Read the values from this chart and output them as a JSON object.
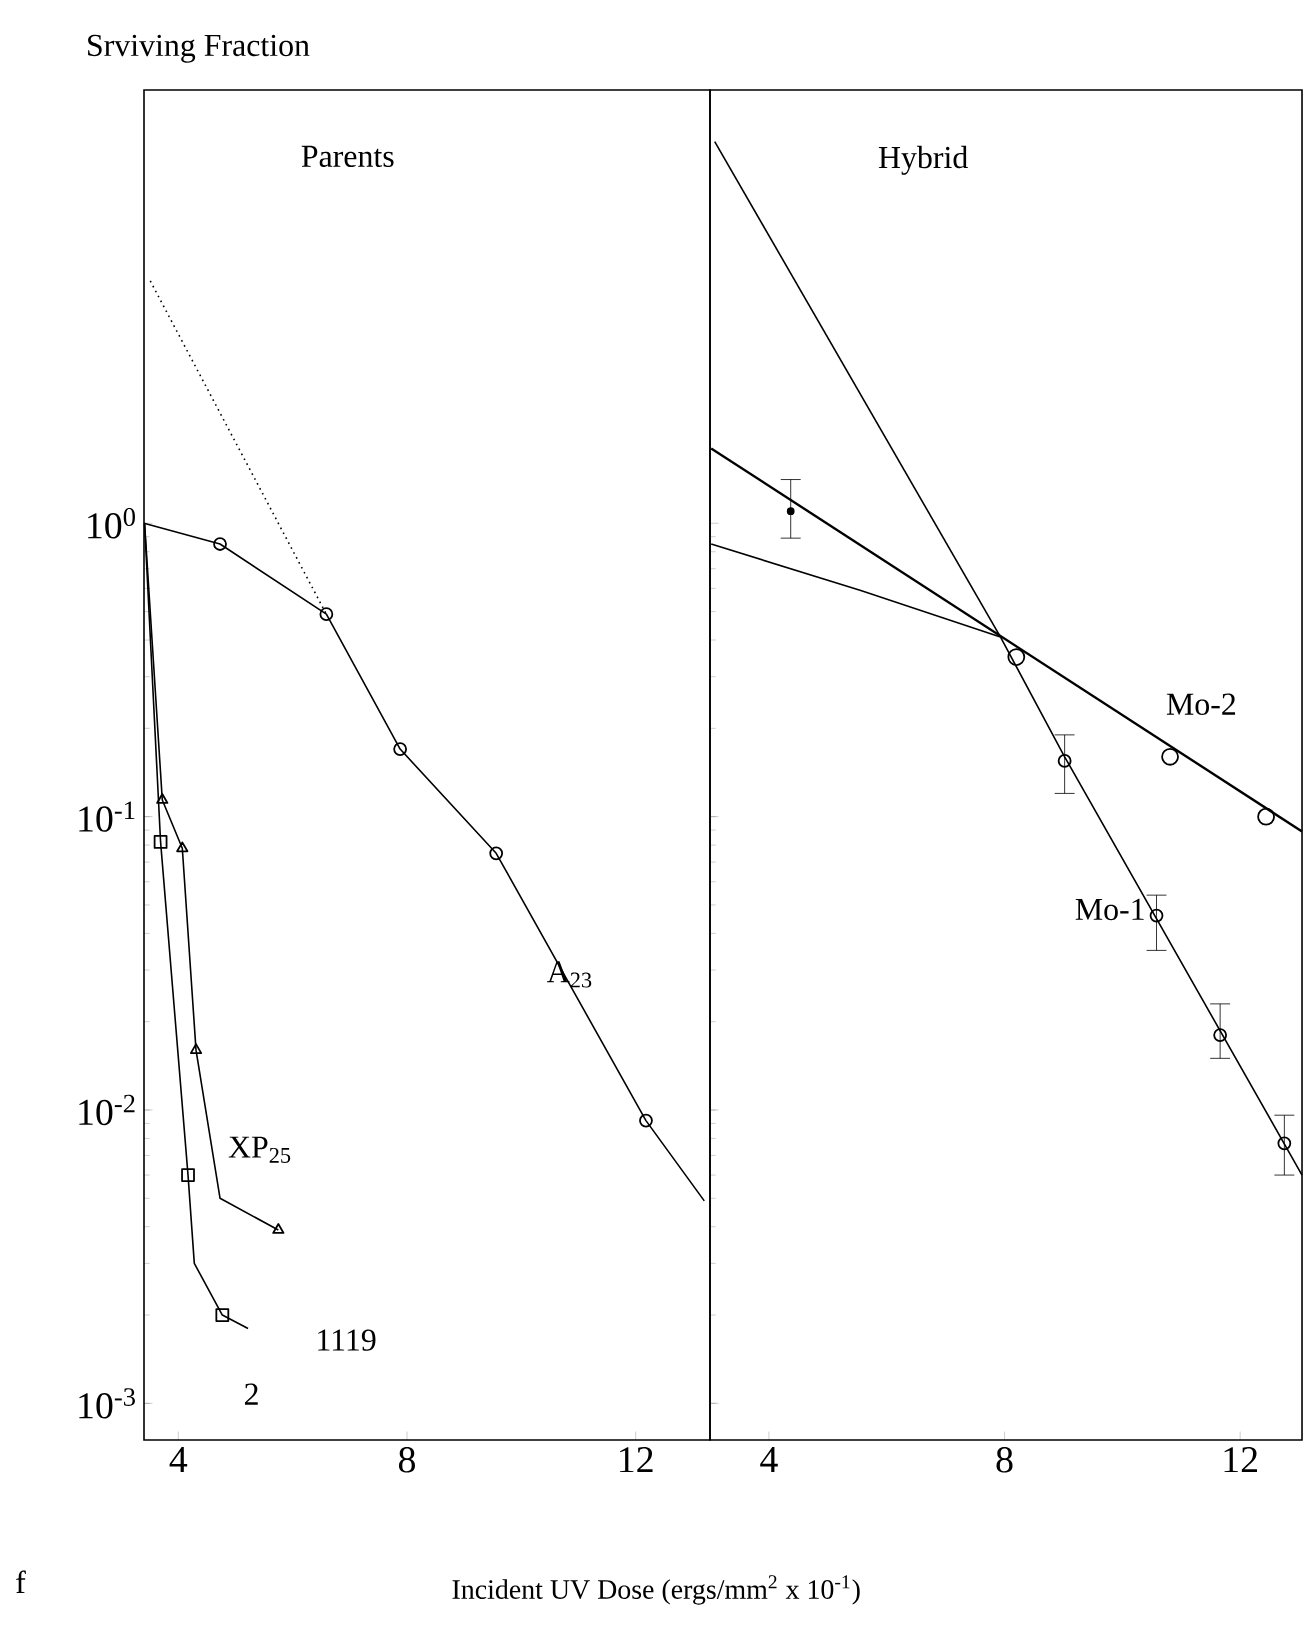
{
  "chart_data": [
    {
      "type": "line",
      "title": "Parents",
      "ylabel": "Srviving Fraction",
      "xlabel": "Incident UV Dose (ergs/mm$^{2}$ x 10$^{-1}$)",
      "log": "y",
      "xlim": [
        3.4,
        13.3
      ],
      "xticks": [
        4,
        8,
        12
      ],
      "ylim": [
        0.00075,
        30
      ],
      "yticks": [
        {
          "value": 0.001,
          "label": "10$^{-3}$"
        },
        {
          "value": 0.01,
          "label": "10$^{-2}$"
        },
        {
          "value": 0.1,
          "label": "10$^{-1}$"
        },
        {
          "value": 1,
          "label": "10$^{0}$"
        }
      ],
      "series": [
        {
          "color": "#000000",
          "marker": "none",
          "x": [
            3.4,
            4.73,
            6.59,
            7.88,
            9.56,
            12.18,
            13.2
          ],
          "values": [
            1.0,
            0.85,
            0.49,
            0.17,
            0.075,
            0.0092,
            0.0049
          ]
        },
        {
          "type": "scatter",
          "color": "#000000",
          "marker": "circle",
          "x": [
            4.73,
            6.59,
            7.88,
            9.56,
            12.18
          ],
          "values": [
            0.85,
            0.49,
            0.17,
            0.075,
            0.0092
          ]
        },
        {
          "color": "#000000",
          "marker": "none",
          "line_style": "dotted",
          "x": [
            3.51,
            6.59
          ],
          "values": [
            6.7,
            0.49
          ]
        },
        {
          "color": "#000000",
          "marker": "none",
          "x": [
            3.41,
            3.72,
            4.07,
            4.31,
            4.73,
            5.75
          ],
          "values": [
            1.0,
            0.114,
            0.078,
            0.016,
            0.005,
            0.0039
          ]
        },
        {
          "type": "scatter",
          "color": "#000000",
          "marker": "triangle",
          "x": [
            3.72,
            4.07,
            4.31,
            5.75
          ],
          "values": [
            0.114,
            0.078,
            0.016,
            0.0039
          ]
        },
        {
          "color": "#000000",
          "marker": "none",
          "x": [
            3.41,
            3.69,
            4.17,
            4.28,
            4.77,
            5.22
          ],
          "values": [
            1.0,
            0.082,
            0.006,
            0.003,
            0.002,
            0.0018
          ]
        },
        {
          "type": "scatter",
          "color": "#000000",
          "marker": "square",
          "x": [
            3.69,
            4.17,
            4.77
          ],
          "values": [
            0.082,
            0.006,
            0.002
          ]
        }
      ],
      "annotations": [
        {
          "text": "A$_{23}$",
          "x": 10.85,
          "y": 0.029
        },
        "XP$_{25}$",
        "1119",
        "2",
        "f"
      ]
    },
    {
      "type": "line",
      "title": "Hybrid",
      "log": "y",
      "xlim": [
        3.0,
        13.05
      ],
      "xticks": [
        4,
        8,
        12
      ],
      "ylim": [
        0.00075,
        30
      ],
      "tick_labels": "x",
      "yticks": [
        {
          "value": 0.001,
          "label": null
        },
        {
          "value": 0.01,
          "label": null
        },
        {
          "value": 0.1,
          "label": null
        },
        {
          "value": 1,
          "label": null
        }
      ],
      "series": [
        {
          "color": "#000000",
          "marker": "none",
          "x": [
            3.02,
            13.05
          ],
          "values": [
            1.8,
            0.089
          ]
        },
        {
          "type": "scatter",
          "color": "#000000",
          "marker": "circle",
          "x": [
            8.2,
            10.81,
            12.44
          ],
          "values": [
            0.35,
            0.16,
            0.1
          ]
        },
        {
          "type": "scatter",
          "color": "#000000",
          "x": [
            4.37
          ],
          "values": [
            1.1
          ],
          "errors": [
            [
              0.89,
              1.41
            ]
          ]
        },
        {
          "color": "#000000",
          "marker": "none",
          "x": [
            3.02,
            5.56,
            7.93,
            9.02,
            13.05
          ],
          "values": [
            0.85,
            0.59,
            0.41,
            0.16,
            0.006
          ]
        },
        {
          "type": "scatter",
          "color": "#000000",
          "marker": "circle",
          "x": [
            9.02,
            10.58,
            11.66,
            12.75
          ],
          "values": [
            0.155,
            0.046,
            0.018,
            0.0077
          ],
          "errors": [
            [
              0.12,
              0.19
            ],
            [
              0.035,
              0.054
            ],
            [
              0.015,
              0.023
            ],
            [
              0.006,
              0.0096
            ]
          ]
        },
        {
          "color": "#000000",
          "marker": "none",
          "x": [
            3.08,
            7.93
          ],
          "values": [
            20,
            0.41
          ]
        }
      ],
      "annotations": [
        "Mo-2",
        "Mo-1"
      ]
    }
  ]
}
